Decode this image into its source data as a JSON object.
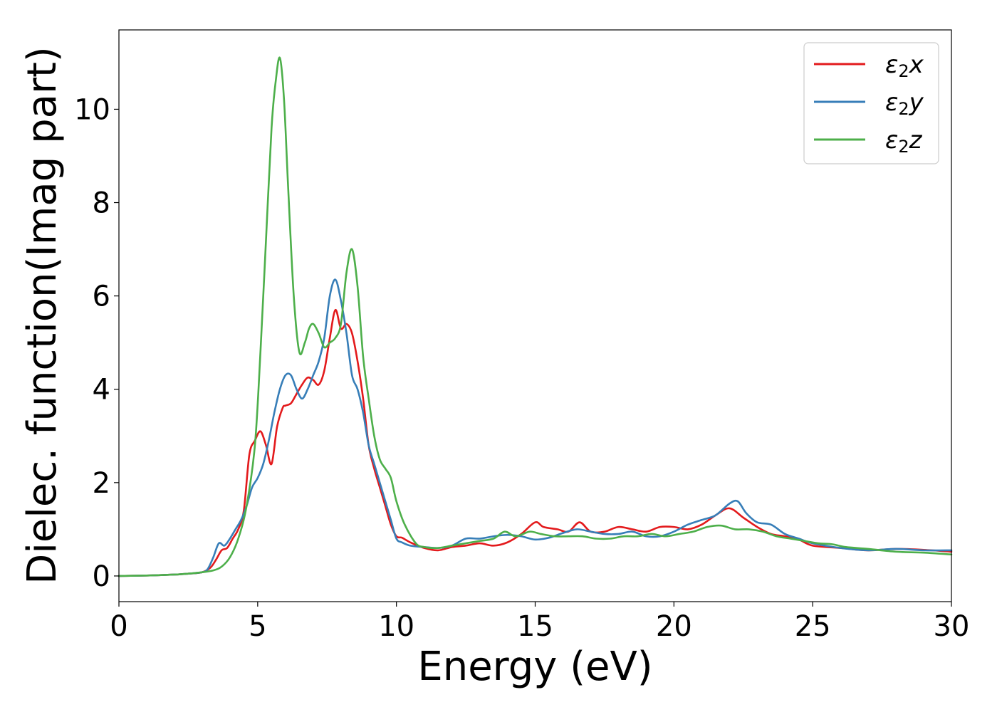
{
  "chart_data": {
    "type": "line",
    "xlabel": "Energy (eV)",
    "ylabel": "Dielec. function(Imag part)",
    "xlim": [
      0,
      30
    ],
    "ylim": [
      -0.55,
      11.7
    ],
    "xticks": [
      "0",
      "5",
      "10",
      "15",
      "20",
      "25",
      "30"
    ],
    "yticks": [
      "0",
      "2",
      "4",
      "6",
      "8",
      "10"
    ],
    "grid": false,
    "legend_position": "top-right",
    "series": [
      {
        "name": "ε₂x",
        "legend_base": "ε",
        "legend_sub": "2",
        "legend_suffix": "x",
        "color": "#e31a1c",
        "x": [
          0,
          1,
          2,
          2.5,
          3,
          3.3,
          3.5,
          3.7,
          3.9,
          4.1,
          4.3,
          4.5,
          4.7,
          4.9,
          5.1,
          5.3,
          5.5,
          5.7,
          5.9,
          6.0,
          6.2,
          6.4,
          6.6,
          6.8,
          7.0,
          7.2,
          7.4,
          7.6,
          7.8,
          8.0,
          8.2,
          8.4,
          8.6,
          8.8,
          9.0,
          9.2,
          9.4,
          9.6,
          9.8,
          10.0,
          10.2,
          10.5,
          11.0,
          11.5,
          12.0,
          12.5,
          13.0,
          13.5,
          14.0,
          14.5,
          15.0,
          15.3,
          15.8,
          16.2,
          16.6,
          17.0,
          17.5,
          18.0,
          18.5,
          19.0,
          19.5,
          20.0,
          20.5,
          21.0,
          21.5,
          22.0,
          22.5,
          23.0,
          23.5,
          24.0,
          24.5,
          25.0,
          26.0,
          27.0,
          28.0,
          29.0,
          30.0
        ],
        "values": [
          0,
          0.01,
          0.03,
          0.05,
          0.08,
          0.18,
          0.35,
          0.55,
          0.6,
          0.8,
          1.0,
          1.4,
          2.6,
          2.9,
          3.1,
          2.8,
          2.4,
          3.2,
          3.6,
          3.65,
          3.7,
          3.9,
          4.1,
          4.25,
          4.2,
          4.1,
          4.4,
          5.1,
          5.7,
          5.3,
          5.4,
          5.2,
          4.6,
          3.8,
          2.8,
          2.3,
          1.9,
          1.5,
          1.1,
          0.85,
          0.82,
          0.72,
          0.6,
          0.55,
          0.62,
          0.65,
          0.7,
          0.65,
          0.72,
          0.9,
          1.15,
          1.05,
          1.0,
          0.95,
          1.15,
          0.95,
          0.95,
          1.05,
          1.0,
          0.95,
          1.05,
          1.05,
          1.0,
          1.1,
          1.3,
          1.45,
          1.25,
          1.05,
          0.9,
          0.85,
          0.78,
          0.65,
          0.6,
          0.55,
          0.58,
          0.56,
          0.52
        ]
      },
      {
        "name": "ε₂y",
        "legend_base": "ε",
        "legend_sub": "2",
        "legend_suffix": "y",
        "color": "#377eb8",
        "x": [
          0,
          1,
          2,
          2.5,
          3,
          3.2,
          3.4,
          3.6,
          3.8,
          4.0,
          4.2,
          4.4,
          4.6,
          4.8,
          5.0,
          5.2,
          5.4,
          5.6,
          5.8,
          6.0,
          6.2,
          6.4,
          6.6,
          6.8,
          7.0,
          7.2,
          7.4,
          7.6,
          7.8,
          8.0,
          8.2,
          8.4,
          8.6,
          8.8,
          9.0,
          9.2,
          9.4,
          9.6,
          9.8,
          10.0,
          10.2,
          10.5,
          11.0,
          11.5,
          12.0,
          12.5,
          13.0,
          13.5,
          14.0,
          14.5,
          15.0,
          15.5,
          16.0,
          16.5,
          17.0,
          17.5,
          18.0,
          18.5,
          19.0,
          19.5,
          20.0,
          20.5,
          21.0,
          21.5,
          22.0,
          22.3,
          22.6,
          23.0,
          23.5,
          24.0,
          24.5,
          25.0,
          26.0,
          27.0,
          28.0,
          29.0,
          30.0
        ],
        "values": [
          0,
          0.01,
          0.03,
          0.05,
          0.08,
          0.15,
          0.4,
          0.7,
          0.65,
          0.8,
          1.0,
          1.2,
          1.5,
          1.9,
          2.1,
          2.4,
          2.9,
          3.5,
          4.0,
          4.3,
          4.3,
          4.0,
          3.8,
          4.0,
          4.3,
          4.6,
          5.1,
          6.0,
          6.35,
          5.9,
          5.2,
          4.3,
          4.0,
          3.5,
          2.8,
          2.4,
          2.0,
          1.6,
          1.2,
          0.8,
          0.72,
          0.65,
          0.62,
          0.6,
          0.65,
          0.8,
          0.8,
          0.85,
          0.88,
          0.85,
          0.78,
          0.82,
          0.92,
          1.0,
          0.95,
          0.9,
          0.9,
          0.95,
          0.85,
          0.85,
          0.95,
          1.1,
          1.2,
          1.3,
          1.55,
          1.6,
          1.35,
          1.15,
          1.1,
          0.9,
          0.8,
          0.7,
          0.6,
          0.55,
          0.58,
          0.55,
          0.55
        ]
      },
      {
        "name": "ε₂z",
        "legend_base": "ε",
        "legend_sub": "2",
        "legend_suffix": "z",
        "color": "#4daf4a",
        "x": [
          0,
          1,
          2,
          2.5,
          3,
          3.4,
          3.7,
          4.0,
          4.3,
          4.6,
          4.9,
          5.1,
          5.3,
          5.5,
          5.65,
          5.8,
          5.95,
          6.1,
          6.3,
          6.5,
          6.7,
          6.85,
          7.0,
          7.2,
          7.4,
          7.6,
          7.8,
          8.0,
          8.2,
          8.4,
          8.6,
          8.8,
          9.0,
          9.2,
          9.4,
          9.6,
          9.8,
          10.0,
          10.3,
          10.7,
          11.0,
          11.5,
          12.0,
          12.5,
          13.0,
          13.5,
          13.9,
          14.3,
          14.8,
          15.2,
          15.7,
          16.2,
          16.7,
          17.2,
          17.7,
          18.2,
          18.7,
          19.2,
          19.7,
          20.2,
          20.7,
          21.2,
          21.7,
          22.2,
          22.7,
          23.2,
          23.7,
          24.2,
          24.7,
          25.2,
          25.7,
          26.2,
          27.0,
          28.0,
          29.0,
          30.0
        ],
        "values": [
          0,
          0.01,
          0.03,
          0.05,
          0.08,
          0.12,
          0.2,
          0.4,
          0.8,
          1.5,
          2.8,
          4.8,
          7.2,
          9.6,
          10.6,
          11.1,
          10.2,
          8.3,
          6.0,
          4.8,
          5.0,
          5.3,
          5.4,
          5.2,
          4.9,
          5.0,
          5.1,
          5.4,
          6.5,
          7.0,
          6.2,
          4.7,
          3.8,
          3.0,
          2.5,
          2.3,
          2.1,
          1.6,
          1.1,
          0.7,
          0.62,
          0.6,
          0.65,
          0.7,
          0.75,
          0.8,
          0.95,
          0.85,
          0.95,
          0.9,
          0.85,
          0.85,
          0.85,
          0.8,
          0.8,
          0.85,
          0.85,
          0.9,
          0.85,
          0.9,
          0.95,
          1.05,
          1.08,
          1.0,
          1.0,
          0.95,
          0.85,
          0.8,
          0.75,
          0.7,
          0.68,
          0.62,
          0.58,
          0.52,
          0.5,
          0.46
        ]
      }
    ]
  }
}
